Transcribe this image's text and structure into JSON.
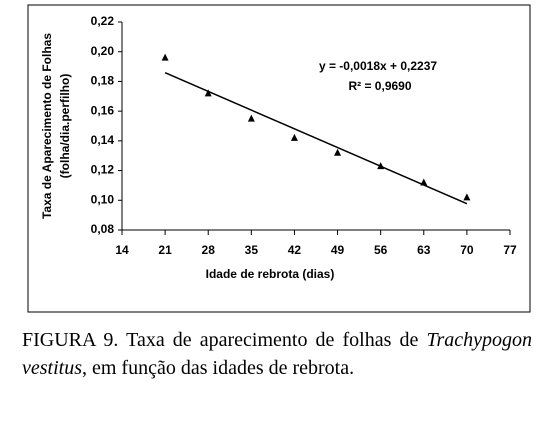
{
  "chart_data": {
    "type": "scatter",
    "y_label_lines": [
      "Taxa de Aparecimento de Folhas",
      "(folha/dia.perfilho)"
    ],
    "x_label": "Idade de rebrota (dias)",
    "x": [
      21,
      28,
      35,
      42,
      49,
      56,
      63,
      70
    ],
    "values": [
      0.196,
      0.172,
      0.155,
      0.142,
      0.132,
      0.123,
      0.112,
      0.102
    ],
    "color": "#000000",
    "trendline": {
      "x": [
        21,
        70
      ],
      "values": [
        0.1859,
        0.0977
      ],
      "equation": "y = -0,0018x + 0,2237",
      "r2": "R² = 0,9690"
    },
    "xlim": [
      14,
      77
    ],
    "xticks": [
      14,
      21,
      28,
      35,
      42,
      49,
      56,
      63,
      70,
      77
    ],
    "ylim": [
      0.08,
      0.22
    ],
    "yticks": [
      {
        "value": 0.08,
        "label": "0,08"
      },
      {
        "value": 0.1,
        "label": "0,10"
      },
      {
        "value": 0.12,
        "label": "0,12"
      },
      {
        "value": 0.14,
        "label": "0,14"
      },
      {
        "value": 0.16,
        "label": "0,16"
      },
      {
        "value": 0.18,
        "label": "0,18"
      },
      {
        "value": 0.2,
        "label": "0,20"
      },
      {
        "value": 0.22,
        "label": "0,22"
      }
    ],
    "grid": false
  },
  "caption": {
    "prefix": "FIGURA 9. Taxa de aparecimento de folhas de",
    "italic": "Trachypogon vestitus",
    "suffix": ", em função das idades de rebrota."
  }
}
